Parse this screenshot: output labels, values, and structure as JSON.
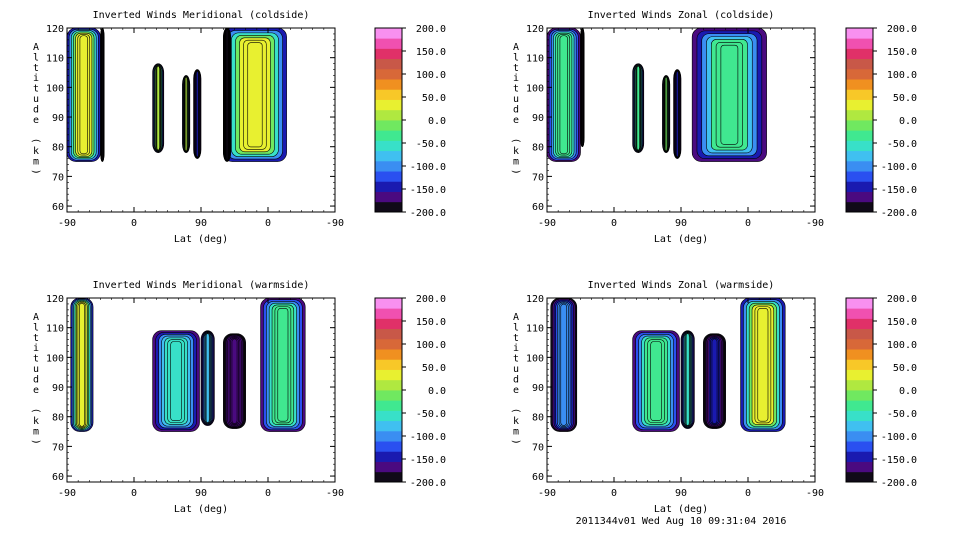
{
  "footer": "2011344v01 Wed Aug 10 09:31:04 2016",
  "colorbar_ticks": [
    "200.0",
    "150.0",
    "100.0",
    "50.0",
    "0.0",
    "-50.0",
    "-100.0",
    "-150.0",
    "-200.0"
  ],
  "palette": [
    "#100a18",
    "#4a0a80",
    "#1a1ab0",
    "#2a50f0",
    "#3a8ef2",
    "#40c0f0",
    "#38e0c8",
    "#40e890",
    "#70e860",
    "#b0e840",
    "#e8f030",
    "#f8c828",
    "#f09020",
    "#d86838",
    "#c85848",
    "#e03068",
    "#f050b0",
    "#f890f0"
  ],
  "chart_data": [
    {
      "type": "heatmap",
      "title": "Inverted Winds Meridional (coldside)",
      "xlabel": "Lat (deg)",
      "ylabel": "Altitude (km)",
      "xtick_labels": [
        "-90",
        "0",
        "90",
        "0",
        "-90"
      ],
      "yticks": [
        60,
        70,
        80,
        90,
        100,
        110,
        120
      ],
      "ylim": [
        58,
        120
      ],
      "colorbar": {
        "min": -200,
        "max": 200
      },
      "regions": [
        {
          "x": [
            -90,
            -45
          ],
          "y": [
            75,
            120
          ],
          "base": 25
        },
        {
          "x": [
            -45,
            -40
          ],
          "y": [
            75,
            120
          ],
          "base": -200
        },
        {
          "x": [
            25,
            40
          ],
          "y": [
            78,
            108
          ],
          "base": 10
        },
        {
          "x": [
            65,
            75
          ],
          "y": [
            78,
            104
          ],
          "base": 15
        },
        {
          "x": [
            80,
            90
          ],
          "y": [
            76,
            106
          ],
          "base": -140
        },
        {
          "x": [
            120,
            205
          ],
          "y": [
            75,
            120
          ],
          "base": 30
        },
        {
          "x": [
            120,
            130
          ],
          "y": [
            75,
            120
          ],
          "base": -190
        }
      ]
    },
    {
      "type": "heatmap",
      "title": "Inverted Winds Zonal (coldside)",
      "xlabel": "Lat (deg)",
      "ylabel": "Altitude (km)",
      "xtick_labels": [
        "-90",
        "0",
        "90",
        "0",
        "-90"
      ],
      "yticks": [
        60,
        70,
        80,
        90,
        100,
        110,
        120
      ],
      "ylim": [
        58,
        120
      ],
      "colorbar": {
        "min": -200,
        "max": 200
      },
      "regions": [
        {
          "x": [
            -90,
            -45
          ],
          "y": [
            75,
            120
          ],
          "base": -30
        },
        {
          "x": [
            -45,
            -40
          ],
          "y": [
            80,
            120
          ],
          "base": -200
        },
        {
          "x": [
            25,
            40
          ],
          "y": [
            78,
            108
          ],
          "base": -30
        },
        {
          "x": [
            65,
            75
          ],
          "y": [
            78,
            104
          ],
          "base": -20
        },
        {
          "x": [
            80,
            90
          ],
          "y": [
            76,
            106
          ],
          "base": -140
        },
        {
          "x": [
            105,
            205
          ],
          "y": [
            75,
            120
          ],
          "base": -40
        }
      ]
    },
    {
      "type": "heatmap",
      "title": "Inverted Winds Meridional (warmside)",
      "xlabel": "Lat (deg)",
      "ylabel": "Altitude (km)",
      "xtick_labels": [
        "-90",
        "0",
        "90",
        "0",
        "-90"
      ],
      "yticks": [
        60,
        70,
        80,
        90,
        100,
        110,
        120
      ],
      "ylim": [
        58,
        120
      ],
      "colorbar": {
        "min": -200,
        "max": 200
      },
      "regions": [
        {
          "x": [
            -85,
            -55
          ],
          "y": [
            75,
            120
          ],
          "base": 30
        },
        {
          "x": [
            25,
            88
          ],
          "y": [
            75,
            109
          ],
          "base": -50
        },
        {
          "x": [
            90,
            108
          ],
          "y": [
            77,
            109
          ],
          "base": -70
        },
        {
          "x": [
            120,
            150
          ],
          "y": [
            76,
            108
          ],
          "base": -160
        },
        {
          "x": [
            170,
            230
          ],
          "y": [
            75,
            120
          ],
          "base": -30
        }
      ]
    },
    {
      "type": "heatmap",
      "title": "Inverted Winds Zonal (warmside)",
      "xlabel": "Lat (deg)",
      "ylabel": "Altitude (km)",
      "xtick_labels": [
        "-90",
        "0",
        "90",
        "0",
        "-90"
      ],
      "yticks": [
        60,
        70,
        80,
        90,
        100,
        110,
        120
      ],
      "ylim": [
        58,
        120
      ],
      "colorbar": {
        "min": -200,
        "max": 200
      },
      "regions": [
        {
          "x": [
            -85,
            -50
          ],
          "y": [
            75,
            120
          ],
          "base": -90
        },
        {
          "x": [
            25,
            88
          ],
          "y": [
            75,
            109
          ],
          "base": -30
        },
        {
          "x": [
            90,
            108
          ],
          "y": [
            76,
            109
          ],
          "base": -60
        },
        {
          "x": [
            120,
            150
          ],
          "y": [
            76,
            108
          ],
          "base": -150
        },
        {
          "x": [
            170,
            230
          ],
          "y": [
            75,
            120
          ],
          "base": 30
        }
      ]
    }
  ]
}
